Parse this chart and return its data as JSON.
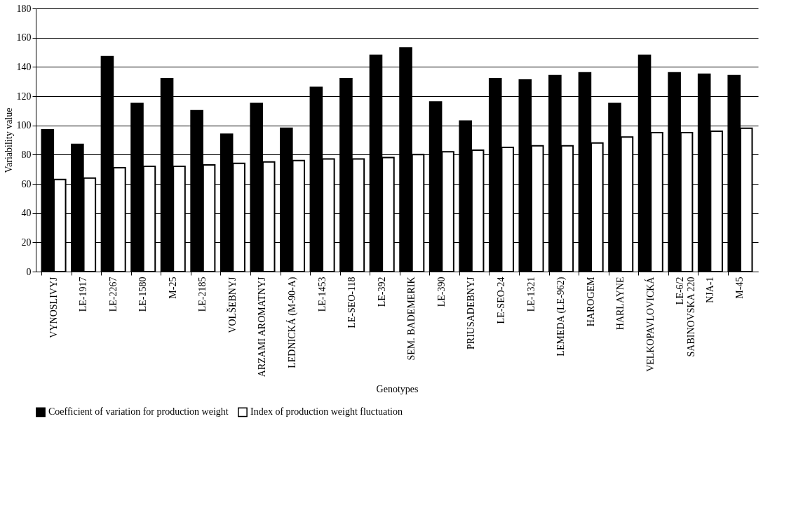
{
  "chart_data": {
    "type": "bar",
    "xlabel": "Genotypes",
    "ylabel": "Variability value",
    "categories": [
      "VYNOSLIVYJ",
      "LE-1917",
      "LE-2267",
      "LE-1580",
      "M-25",
      "LE-2185",
      "VOLŠEBNYJ",
      "ARZAMI AROMATNYJ",
      "LEDNICKÁ (M-90-A)",
      "LE-1453",
      "LE-SEO-118",
      "LE-392",
      "SEM. BADEMERIK",
      "LE-390",
      "PRIUSADEBNYJ",
      "LE-SEO-24",
      "LE-1321",
      "LEMEDA (LE-962)",
      "HAROGEM",
      "HARLAYNE",
      "VELKOPAVLOVICKÁ",
      "LE-6/2\nSABINOVSKA 220",
      "NJA-1",
      "M-45"
    ],
    "series": [
      {
        "name": "Coefficient of variation for production weight",
        "color": "#000000",
        "values": [
          97,
          87,
          147,
          115,
          132,
          110,
          94,
          115,
          98,
          126,
          132,
          148,
          153,
          116,
          103,
          132,
          131,
          134,
          136,
          115,
          148,
          136,
          135,
          134
        ]
      },
      {
        "name": "Index of production weight fluctuation",
        "color": "#ffffff",
        "values": [
          63,
          64,
          71,
          72,
          72,
          73,
          74,
          75,
          76,
          77,
          77,
          78,
          80,
          82,
          83,
          85,
          86,
          86,
          88,
          92,
          95,
          95,
          96,
          98
        ]
      }
    ],
    "ylim": [
      0,
      180
    ],
    "yticks": [
      0,
      20,
      40,
      60,
      80,
      100,
      120,
      140,
      160,
      180
    ],
    "grid": "y",
    "legend": "bottom"
  }
}
